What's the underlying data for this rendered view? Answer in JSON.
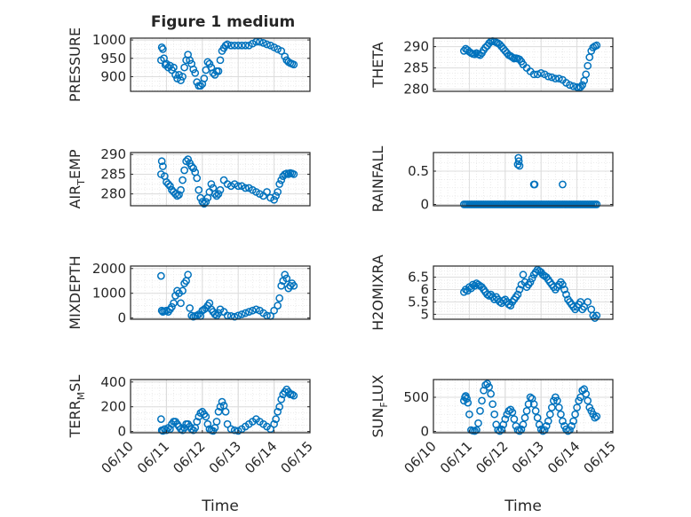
{
  "figure_title": "Figure 1 medium",
  "chart_data": [
    {
      "type": "scatter",
      "id": "pressure",
      "ylabel": {
        "main": "PRESSURE",
        "sub": "",
        "rest": ""
      },
      "ylim": [
        860,
        1005
      ],
      "yticks": [
        900,
        950,
        1000
      ],
      "ytick_labels": [
        "900",
        "950",
        "1000"
      ],
      "xlim": [
        0,
        5
      ],
      "xticks": [],
      "xtick_labels": [],
      "xlabel": "",
      "grid": true,
      "marker": "open-circle",
      "color": "#0072BD",
      "x": [
        0.85,
        0.87,
        0.9,
        0.93,
        0.97,
        1.0,
        1.05,
        1.1,
        1.15,
        1.2,
        1.25,
        1.3,
        1.35,
        1.4,
        1.45,
        1.5,
        1.55,
        1.6,
        1.65,
        1.7,
        1.75,
        1.8,
        1.85,
        1.9,
        1.95,
        2.0,
        2.05,
        2.1,
        2.15,
        2.2,
        2.25,
        2.3,
        2.35,
        2.4,
        2.45,
        2.5,
        2.55,
        2.6,
        2.65,
        2.7,
        2.8,
        2.9,
        3.0,
        3.1,
        3.2,
        3.3,
        3.4,
        3.5,
        3.6,
        3.7,
        3.8,
        3.9,
        4.0,
        4.1,
        4.2,
        4.3,
        4.35,
        4.4,
        4.45,
        4.5,
        4.55
      ],
      "y": [
        945,
        980,
        975,
        950,
        932,
        935,
        925,
        930,
        918,
        925,
        905,
        895,
        905,
        890,
        900,
        925,
        945,
        960,
        945,
        935,
        920,
        910,
        885,
        875,
        875,
        880,
        895,
        918,
        940,
        935,
        925,
        910,
        905,
        915,
        915,
        945,
        970,
        978,
        985,
        988,
        985,
        985,
        985,
        985,
        985,
        985,
        990,
        995,
        995,
        992,
        988,
        985,
        980,
        975,
        970,
        955,
        945,
        940,
        937,
        935,
        933
      ]
    },
    {
      "type": "scatter",
      "id": "theta",
      "ylabel": {
        "main": "THETA",
        "sub": "",
        "rest": ""
      },
      "ylim": [
        279.5,
        292
      ],
      "yticks": [
        280,
        285,
        290
      ],
      "ytick_labels": [
        "280",
        "285",
        "290"
      ],
      "xlim": [
        0,
        5
      ],
      "xticks": [],
      "xtick_labels": [],
      "xlabel": "",
      "grid": true,
      "marker": "open-circle",
      "color": "#0072BD",
      "x": [
        0.85,
        0.9,
        0.95,
        1.0,
        1.05,
        1.1,
        1.15,
        1.2,
        1.25,
        1.3,
        1.35,
        1.4,
        1.45,
        1.5,
        1.55,
        1.6,
        1.65,
        1.7,
        1.75,
        1.8,
        1.85,
        1.9,
        1.95,
        2.0,
        2.05,
        2.1,
        2.15,
        2.2,
        2.25,
        2.3,
        2.35,
        2.4,
        2.45,
        2.5,
        2.6,
        2.7,
        2.8,
        2.9,
        3.0,
        3.1,
        3.2,
        3.3,
        3.4,
        3.5,
        3.6,
        3.7,
        3.8,
        3.9,
        4.0,
        4.05,
        4.1,
        4.15,
        4.2,
        4.25,
        4.3,
        4.35,
        4.4,
        4.45,
        4.5,
        4.55
      ],
      "y": [
        289,
        289.5,
        289.2,
        288.8,
        288.5,
        288.3,
        288.2,
        288.5,
        288.2,
        288,
        288.5,
        289.2,
        289.8,
        290.2,
        290.8,
        291.2,
        291.3,
        291.2,
        291,
        290.8,
        290.5,
        290,
        289.5,
        289,
        288.5,
        288,
        287.8,
        287.5,
        287.2,
        287.3,
        287.2,
        287,
        286.5,
        285.8,
        285,
        284.2,
        283.5,
        283.5,
        283.8,
        283.5,
        283,
        282.8,
        282.5,
        282.5,
        282.2,
        281.5,
        281,
        280.7,
        280.5,
        280.3,
        280.5,
        281,
        282,
        283.5,
        285.5,
        287.5,
        289,
        289.8,
        290.1,
        290.3
      ]
    },
    {
      "type": "scatter",
      "id": "air_temp",
      "ylabel": {
        "main": "AIR",
        "sub": "T",
        "rest": "EMP"
      },
      "ylim": [
        277,
        290.5
      ],
      "yticks": [
        280,
        285,
        290
      ],
      "ytick_labels": [
        "280",
        "285",
        "290"
      ],
      "xlim": [
        0,
        5
      ],
      "xticks": [],
      "xtick_labels": [],
      "xlabel": "",
      "grid": true,
      "marker": "open-circle",
      "color": "#0072BD",
      "x": [
        0.85,
        0.87,
        0.9,
        0.95,
        1.0,
        1.05,
        1.1,
        1.15,
        1.2,
        1.25,
        1.3,
        1.35,
        1.4,
        1.45,
        1.5,
        1.55,
        1.6,
        1.65,
        1.7,
        1.75,
        1.8,
        1.85,
        1.9,
        1.95,
        2.0,
        2.05,
        2.1,
        2.15,
        2.2,
        2.25,
        2.3,
        2.35,
        2.4,
        2.45,
        2.5,
        2.6,
        2.7,
        2.8,
        2.9,
        3.0,
        3.1,
        3.2,
        3.3,
        3.4,
        3.5,
        3.6,
        3.7,
        3.8,
        3.9,
        4.0,
        4.05,
        4.1,
        4.15,
        4.2,
        4.25,
        4.3,
        4.35,
        4.4,
        4.45,
        4.5,
        4.55
      ],
      "y": [
        285,
        288.3,
        287,
        284.5,
        283,
        282.5,
        282,
        281,
        280.5,
        280,
        279.5,
        279.8,
        281,
        283.5,
        286,
        288.3,
        288.8,
        287.8,
        287,
        286.5,
        285.5,
        284,
        281,
        279,
        278,
        277.5,
        278,
        279,
        280.5,
        282.5,
        281.5,
        280,
        279.5,
        280,
        281,
        283.5,
        282.5,
        282,
        282.5,
        282,
        282,
        281.5,
        281.5,
        281,
        280.5,
        280,
        279.5,
        280.5,
        279,
        278.5,
        279.5,
        280.5,
        282.5,
        283.5,
        284.5,
        285,
        285.2,
        285,
        285.3,
        285.2,
        285
      ]
    },
    {
      "type": "scatter",
      "id": "rainfall",
      "ylabel": {
        "main": "RAINFALL",
        "sub": "",
        "rest": ""
      },
      "ylim": [
        -0.02,
        0.78
      ],
      "yticks": [
        0,
        0.5
      ],
      "ytick_labels": [
        "0",
        "0.5"
      ],
      "xlim": [
        0,
        5
      ],
      "xticks": [],
      "xtick_labels": [],
      "xlabel": "",
      "grid": true,
      "marker": "open-circle",
      "color": "#0072BD",
      "x": [
        0.85,
        0.9,
        0.95,
        1.0,
        1.05,
        1.1,
        1.15,
        1.2,
        1.25,
        1.3,
        1.35,
        1.4,
        1.45,
        1.5,
        1.55,
        1.6,
        1.65,
        1.7,
        1.75,
        1.8,
        1.85,
        1.9,
        1.95,
        2.0,
        2.05,
        2.1,
        2.15,
        2.2,
        2.25,
        2.3,
        2.35,
        2.4,
        2.45,
        2.5,
        2.55,
        2.6,
        2.65,
        2.7,
        2.75,
        2.8,
        2.85,
        2.9,
        2.95,
        3.0,
        3.05,
        3.1,
        3.15,
        3.2,
        3.25,
        3.3,
        3.35,
        3.4,
        3.45,
        3.5,
        3.55,
        3.6,
        3.65,
        3.7,
        3.75,
        3.8,
        3.85,
        3.9,
        3.95,
        4.0,
        4.05,
        4.1,
        4.15,
        4.2,
        4.25,
        4.3,
        4.35,
        4.4,
        4.45,
        4.5,
        4.55,
        2.35,
        2.37,
        2.38,
        2.4,
        2.8,
        2.82,
        3.6
      ],
      "y": [
        0,
        0,
        0,
        0,
        0,
        0,
        0,
        0,
        0,
        0,
        0,
        0,
        0,
        0,
        0,
        0,
        0,
        0,
        0,
        0,
        0,
        0,
        0,
        0,
        0,
        0,
        0,
        0,
        0,
        0,
        0,
        0,
        0,
        0,
        0,
        0,
        0,
        0,
        0,
        0,
        0,
        0,
        0,
        0,
        0,
        0,
        0,
        0,
        0,
        0,
        0,
        0,
        0,
        0,
        0,
        0,
        0,
        0,
        0,
        0,
        0,
        0,
        0,
        0,
        0,
        0,
        0,
        0,
        0,
        0,
        0,
        0,
        0,
        0,
        0,
        0.6,
        0.7,
        0.65,
        0.58,
        0.3,
        0.3,
        0.3
      ]
    },
    {
      "type": "scatter",
      "id": "mixdepth",
      "ylabel": {
        "main": "MIXDEPTH",
        "sub": "",
        "rest": ""
      },
      "ylim": [
        -50,
        2100
      ],
      "yticks": [
        0,
        1000,
        2000
      ],
      "ytick_labels": [
        "0",
        "1000",
        "2000"
      ],
      "xlim": [
        0,
        5
      ],
      "xticks": [],
      "xtick_labels": [],
      "xlabel": "",
      "grid": true,
      "marker": "open-circle",
      "color": "#0072BD",
      "x": [
        0.85,
        0.87,
        0.9,
        0.95,
        1.0,
        1.05,
        1.1,
        1.15,
        1.2,
        1.25,
        1.3,
        1.35,
        1.4,
        1.45,
        1.5,
        1.55,
        1.6,
        1.65,
        1.7,
        1.75,
        1.8,
        1.85,
        1.9,
        1.95,
        2.0,
        2.05,
        2.1,
        2.15,
        2.2,
        2.25,
        2.3,
        2.35,
        2.4,
        2.45,
        2.5,
        2.6,
        2.7,
        2.8,
        2.9,
        3.0,
        3.1,
        3.2,
        3.3,
        3.4,
        3.5,
        3.6,
        3.7,
        3.8,
        3.9,
        4.0,
        4.1,
        4.15,
        4.2,
        4.25,
        4.3,
        4.35,
        4.4,
        4.45,
        4.5,
        4.55
      ],
      "y": [
        1700,
        300,
        250,
        280,
        300,
        250,
        350,
        450,
        600,
        900,
        1100,
        1000,
        600,
        1100,
        1400,
        1500,
        1750,
        400,
        100,
        50,
        80,
        100,
        150,
        80,
        300,
        350,
        400,
        500,
        600,
        350,
        250,
        150,
        100,
        200,
        350,
        250,
        100,
        80,
        50,
        100,
        150,
        200,
        250,
        300,
        350,
        300,
        200,
        100,
        80,
        300,
        500,
        800,
        1300,
        1500,
        1750,
        1600,
        1200,
        1300,
        1400,
        1300
      ]
    },
    {
      "type": "scatter",
      "id": "h2omixra",
      "ylabel": {
        "main": "H2OMIXRA",
        "sub": "",
        "rest": ""
      },
      "ylim": [
        4.8,
        6.95
      ],
      "yticks": [
        5,
        5.5,
        6,
        6.5
      ],
      "ytick_labels": [
        "5",
        "5.5",
        "6",
        "6.5"
      ],
      "xlim": [
        0,
        5
      ],
      "xticks": [],
      "xtick_labels": [],
      "xlabel": "",
      "grid": true,
      "marker": "open-circle",
      "color": "#0072BD",
      "x": [
        0.85,
        0.9,
        0.95,
        1.0,
        1.05,
        1.1,
        1.15,
        1.2,
        1.25,
        1.3,
        1.35,
        1.4,
        1.45,
        1.5,
        1.55,
        1.6,
        1.65,
        1.7,
        1.75,
        1.8,
        1.85,
        1.9,
        1.95,
        2.0,
        2.05,
        2.1,
        2.15,
        2.2,
        2.25,
        2.3,
        2.35,
        2.4,
        2.45,
        2.5,
        2.55,
        2.6,
        2.65,
        2.7,
        2.75,
        2.8,
        2.85,
        2.9,
        2.95,
        3.0,
        3.05,
        3.1,
        3.15,
        3.2,
        3.25,
        3.3,
        3.35,
        3.4,
        3.45,
        3.5,
        3.55,
        3.6,
        3.65,
        3.7,
        3.75,
        3.8,
        3.85,
        3.9,
        3.95,
        4.0,
        4.05,
        4.1,
        4.15,
        4.2,
        4.3,
        4.4,
        4.45,
        4.5,
        4.55
      ],
      "y": [
        5.9,
        6,
        5.95,
        6.1,
        6.05,
        6.2,
        6.15,
        6.25,
        6.2,
        6.15,
        6.1,
        6,
        5.9,
        5.8,
        5.75,
        5.8,
        5.7,
        5.6,
        5.7,
        5.6,
        5.5,
        5.45,
        5.55,
        5.6,
        5.5,
        5.4,
        5.35,
        5.5,
        5.6,
        5.7,
        5.8,
        6,
        6.2,
        6.6,
        6.3,
        6.1,
        6.2,
        6.3,
        6.45,
        6.6,
        6.7,
        6.8,
        6.75,
        6.7,
        6.6,
        6.55,
        6.5,
        6.4,
        6.3,
        6.2,
        6.1,
        6,
        6.1,
        6.2,
        6.3,
        6.2,
        6,
        5.8,
        5.6,
        5.5,
        5.4,
        5.3,
        5.2,
        5.3,
        5.4,
        5.5,
        5.2,
        5.3,
        5.5,
        5.2,
        4.95,
        4.85,
        4.95
      ]
    },
    {
      "type": "scatter",
      "id": "terr_msl",
      "ylabel": {
        "main": "TERR",
        "sub": "M",
        "rest": "SL"
      },
      "ylim": [
        -10,
        420
      ],
      "yticks": [
        0,
        200,
        400
      ],
      "ytick_labels": [
        "0",
        "200",
        "400"
      ],
      "xlim": [
        0,
        5
      ],
      "xticks": [
        0,
        1,
        2,
        3,
        4,
        5
      ],
      "xtick_labels": [
        "06/10",
        "06/11",
        "06/12",
        "06/13",
        "06/14",
        "06/15"
      ],
      "xlabel": "Time",
      "grid": true,
      "marker": "open-circle",
      "color": "#0072BD",
      "x": [
        0.85,
        0.87,
        0.9,
        0.95,
        1.0,
        1.05,
        1.1,
        1.15,
        1.2,
        1.25,
        1.3,
        1.35,
        1.4,
        1.45,
        1.5,
        1.55,
        1.6,
        1.65,
        1.7,
        1.75,
        1.8,
        1.85,
        1.9,
        1.95,
        2.0,
        2.05,
        2.1,
        2.15,
        2.2,
        2.25,
        2.3,
        2.35,
        2.4,
        2.45,
        2.5,
        2.55,
        2.6,
        2.65,
        2.7,
        2.8,
        2.9,
        3.0,
        3.1,
        3.2,
        3.3,
        3.4,
        3.5,
        3.6,
        3.7,
        3.8,
        3.9,
        4.0,
        4.05,
        4.1,
        4.15,
        4.2,
        4.25,
        4.3,
        4.35,
        4.4,
        4.45,
        4.5,
        4.55
      ],
      "y": [
        100,
        10,
        5,
        20,
        10,
        30,
        20,
        60,
        80,
        80,
        60,
        40,
        20,
        10,
        30,
        60,
        60,
        40,
        20,
        10,
        30,
        80,
        120,
        150,
        160,
        140,
        120,
        60,
        20,
        10,
        5,
        30,
        80,
        160,
        200,
        240,
        210,
        160,
        60,
        20,
        10,
        5,
        20,
        40,
        60,
        80,
        100,
        80,
        60,
        40,
        20,
        60,
        100,
        160,
        200,
        260,
        300,
        320,
        340,
        320,
        300,
        300,
        290
      ]
    },
    {
      "type": "scatter",
      "id": "sun_flux",
      "ylabel": {
        "main": "SUN",
        "sub": "F",
        "rest": "LUX"
      },
      "ylim": [
        -20,
        760
      ],
      "yticks": [
        0,
        500
      ],
      "ytick_labels": [
        "0",
        "500"
      ],
      "xlim": [
        0,
        5
      ],
      "xticks": [
        0,
        1,
        2,
        3,
        4,
        5
      ],
      "xtick_labels": [
        "06/10",
        "06/11",
        "06/12",
        "06/13",
        "06/14",
        "06/15"
      ],
      "xlabel": "Time",
      "grid": true,
      "marker": "open-circle",
      "color": "#0072BD",
      "x": [
        0.85,
        0.88,
        0.9,
        0.93,
        0.96,
        1.0,
        1.05,
        1.1,
        1.15,
        1.2,
        1.25,
        1.3,
        1.35,
        1.4,
        1.45,
        1.5,
        1.55,
        1.6,
        1.65,
        1.7,
        1.75,
        1.8,
        1.85,
        1.9,
        1.95,
        2.0,
        2.05,
        2.1,
        2.15,
        2.2,
        2.25,
        2.3,
        2.35,
        2.4,
        2.45,
        2.5,
        2.55,
        2.6,
        2.65,
        2.7,
        2.75,
        2.8,
        2.85,
        2.9,
        2.95,
        3.0,
        3.05,
        3.1,
        3.15,
        3.2,
        3.25,
        3.3,
        3.35,
        3.4,
        3.45,
        3.5,
        3.55,
        3.6,
        3.65,
        3.7,
        3.75,
        3.8,
        3.85,
        3.9,
        3.95,
        4.0,
        4.05,
        4.1,
        4.15,
        4.2,
        4.25,
        4.3,
        4.35,
        4.4,
        4.45,
        4.5,
        4.55
      ],
      "y": [
        450,
        500,
        520,
        480,
        420,
        250,
        20,
        10,
        5,
        20,
        120,
        300,
        450,
        600,
        680,
        700,
        650,
        550,
        400,
        250,
        100,
        20,
        5,
        30,
        100,
        180,
        250,
        300,
        320,
        280,
        180,
        80,
        20,
        5,
        30,
        100,
        200,
        300,
        400,
        500,
        480,
        400,
        300,
        200,
        100,
        30,
        5,
        20,
        80,
        150,
        250,
        350,
        450,
        500,
        450,
        350,
        250,
        150,
        80,
        30,
        5,
        20,
        80,
        150,
        250,
        350,
        450,
        500,
        600,
        620,
        550,
        450,
        350,
        300,
        250,
        200,
        220
      ]
    }
  ]
}
